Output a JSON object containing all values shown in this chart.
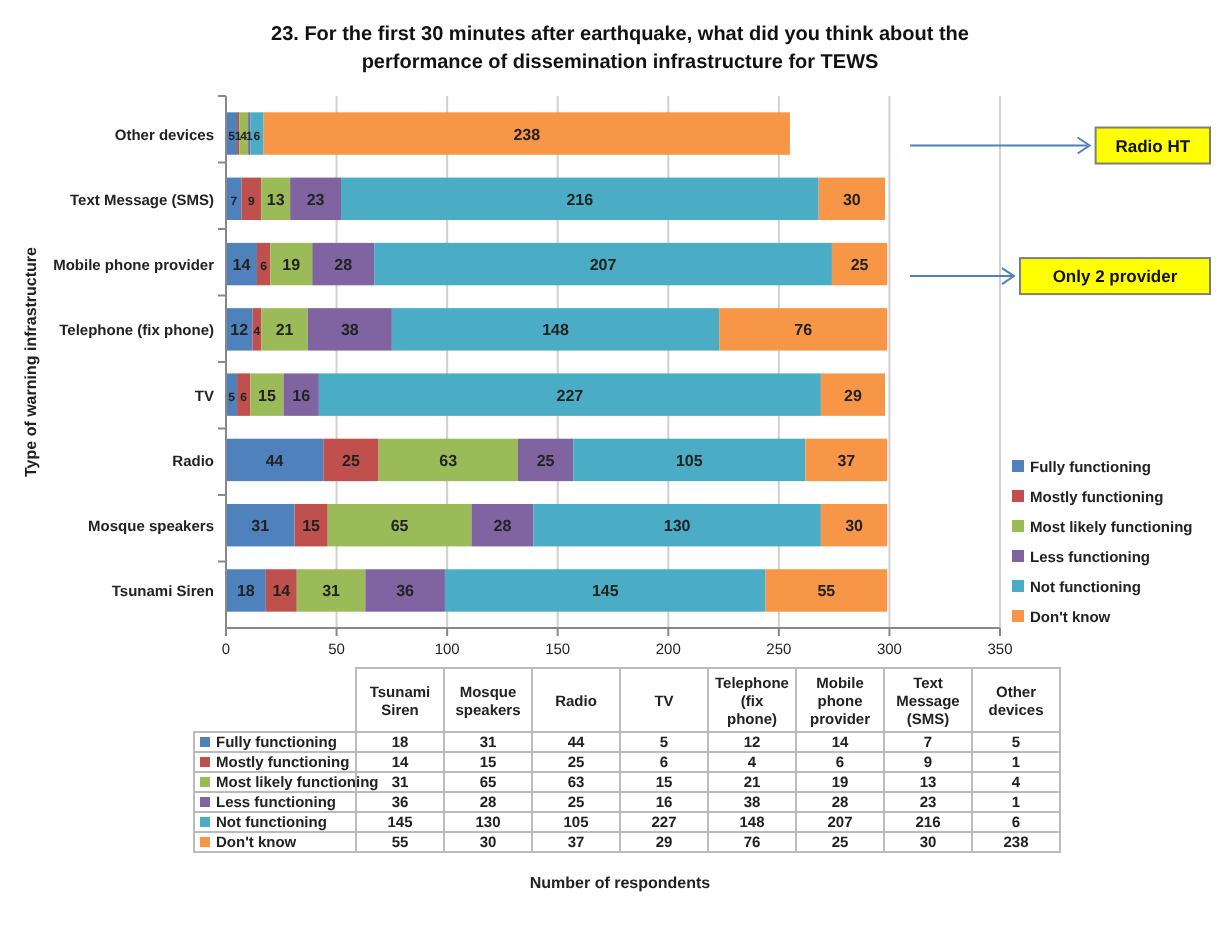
{
  "chart_data": [
    {
      "type": "bar",
      "orientation": "horizontal",
      "stacked": true,
      "title": "23. For the first 30 minutes after earthquake, what did you think about the performance of dissemination infrastructure for TEWS",
      "ylabel": "Type of warning infrastructure",
      "categories": [
        "Other devices",
        "Text Message (SMS)",
        "Mobile phone provider",
        "Telephone (fix phone)",
        "TV",
        "Radio",
        "Mosque speakers",
        "Tsunami Siren"
      ],
      "series": [
        {
          "name": "Fully functioning",
          "color": "#4f81bd",
          "values": [
            5,
            7,
            14,
            12,
            5,
            44,
            31,
            18
          ]
        },
        {
          "name": "Mostly functioning",
          "color": "#c0504d",
          "values": [
            1,
            9,
            6,
            4,
            6,
            25,
            15,
            14
          ]
        },
        {
          "name": "Most likely functioning",
          "color": "#9bbb59",
          "values": [
            4,
            13,
            19,
            21,
            15,
            63,
            65,
            31
          ]
        },
        {
          "name": "Less functioning",
          "color": "#8064a2",
          "values": [
            1,
            23,
            28,
            38,
            16,
            25,
            28,
            36
          ]
        },
        {
          "name": "Not functioning",
          "color": "#4bacc6",
          "values": [
            6,
            216,
            207,
            148,
            227,
            105,
            130,
            145
          ]
        },
        {
          "name": "Don't know",
          "color": "#f79646",
          "values": [
            238,
            30,
            25,
            76,
            29,
            37,
            30,
            55
          ]
        }
      ],
      "xlim": [
        0,
        350
      ],
      "xticks": [
        0,
        50,
        100,
        150,
        200,
        250,
        300,
        350
      ],
      "grid": "x",
      "legend": "right",
      "data_labels": true,
      "annotations": [
        "Radio HT",
        "Only 2 provider",
        "Number of respondents"
      ]
    },
    {
      "type": "other",
      "data_labels": true,
      "categories": [
        "Tsunami Siren",
        "Mosque speakers",
        "Radio",
        "TV",
        "Telephone (fix phone)",
        "Mobile phone provider",
        "Text Message (SMS)",
        "Other devices"
      ],
      "series": [
        {
          "name": "Fully functioning",
          "color": "#4f81bd",
          "values": [
            18,
            31,
            44,
            5,
            12,
            14,
            7,
            5
          ]
        },
        {
          "name": "Mostly functioning",
          "color": "#c0504d",
          "values": [
            14,
            15,
            25,
            6,
            4,
            6,
            9,
            1
          ]
        },
        {
          "name": "Most likely functioning",
          "color": "#9bbb59",
          "values": [
            31,
            65,
            63,
            15,
            21,
            19,
            13,
            4
          ]
        },
        {
          "name": "Less functioning",
          "color": "#8064a2",
          "values": [
            36,
            28,
            25,
            16,
            38,
            28,
            23,
            1
          ]
        },
        {
          "name": "Not functioning",
          "color": "#4bacc6",
          "values": [
            145,
            130,
            105,
            227,
            148,
            207,
            216,
            6
          ]
        },
        {
          "name": "Don't know",
          "color": "#f79646",
          "values": [
            55,
            30,
            37,
            29,
            76,
            25,
            30,
            238
          ]
        }
      ]
    }
  ]
}
